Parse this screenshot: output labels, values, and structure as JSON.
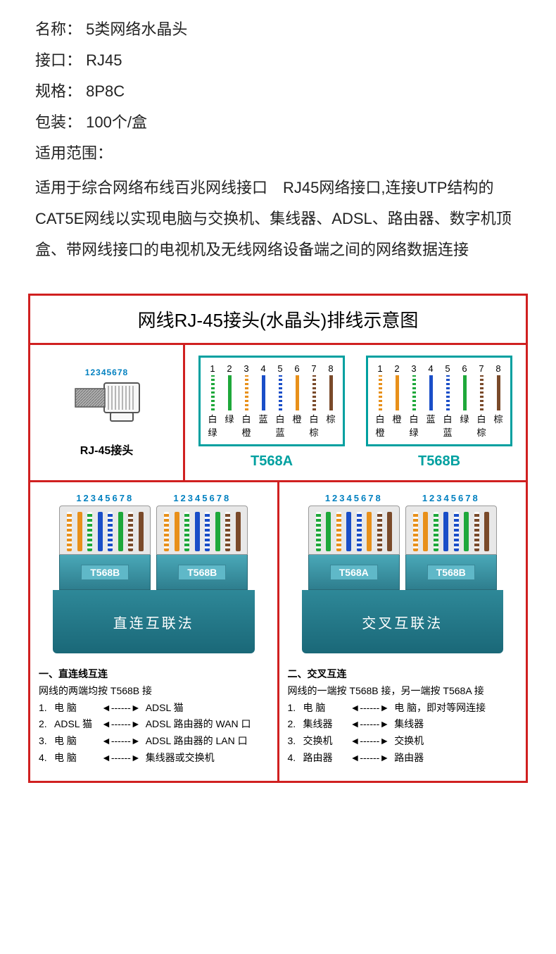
{
  "specs": {
    "name_label": "名称：",
    "name_value": "5类网络水晶头",
    "interface_label": "接口：",
    "interface_value": "RJ45",
    "spec_label": "规格：",
    "spec_value": "8P8C",
    "package_label": "包装：",
    "package_value": "100个/盒",
    "scope_label": "适用范围：",
    "scope_text": "适用于综合网络布线百兆网线接口　RJ45网络接口,连接UTP结构的CAT5E网线以实现电脑与交换机、集线器、ADSL、路由器、数字机顶盒、带网线接口的电视机及无线网络设备端之间的网络数据连接"
  },
  "diagram": {
    "title": "网线RJ-45接头(水晶头)排线示意图",
    "border_color": "#d02020",
    "bg_color": "#ffffff"
  },
  "rj45": {
    "pin_numbers": "12345678",
    "label": "RJ-45接头",
    "pin_number_color": "#0080c0"
  },
  "standards": {
    "t568a": {
      "name": "T568A",
      "name_color": "#009696",
      "wires": [
        {
          "num": "1",
          "color": "#1ea83a",
          "striped": true,
          "top": "白",
          "bot": "绿"
        },
        {
          "num": "2",
          "color": "#1ea83a",
          "striped": false,
          "top": "绿",
          "bot": ""
        },
        {
          "num": "3",
          "color": "#e8901a",
          "striped": true,
          "top": "白",
          "bot": "橙"
        },
        {
          "num": "4",
          "color": "#1a4ec8",
          "striped": false,
          "top": "蓝",
          "bot": ""
        },
        {
          "num": "5",
          "color": "#1a4ec8",
          "striped": true,
          "top": "白",
          "bot": "蓝"
        },
        {
          "num": "6",
          "color": "#e8901a",
          "striped": false,
          "top": "橙",
          "bot": ""
        },
        {
          "num": "7",
          "color": "#7a4a2a",
          "striped": true,
          "top": "白",
          "bot": "棕"
        },
        {
          "num": "8",
          "color": "#7a4a2a",
          "striped": false,
          "top": "棕",
          "bot": ""
        }
      ]
    },
    "t568b": {
      "name": "T568B",
      "name_color": "#009696",
      "wires": [
        {
          "num": "1",
          "color": "#e8901a",
          "striped": true,
          "top": "白",
          "bot": "橙"
        },
        {
          "num": "2",
          "color": "#e8901a",
          "striped": false,
          "top": "橙",
          "bot": ""
        },
        {
          "num": "3",
          "color": "#1ea83a",
          "striped": true,
          "top": "白",
          "bot": "绿"
        },
        {
          "num": "4",
          "color": "#1a4ec8",
          "striped": false,
          "top": "蓝",
          "bot": ""
        },
        {
          "num": "5",
          "color": "#1a4ec8",
          "striped": true,
          "top": "白",
          "bot": "蓝"
        },
        {
          "num": "6",
          "color": "#1ea83a",
          "striped": false,
          "top": "绿",
          "bot": ""
        },
        {
          "num": "7",
          "color": "#7a4a2a",
          "striped": true,
          "top": "白",
          "bot": "棕"
        },
        {
          "num": "8",
          "color": "#7a4a2a",
          "striped": false,
          "top": "棕",
          "bot": ""
        }
      ]
    }
  },
  "methods": {
    "straight": {
      "label": "直连互联法",
      "left_tag": "T568B",
      "right_tag": "T568B",
      "left_std": "t568b",
      "right_std": "t568b",
      "heading": "一、直连线互连",
      "sub": "网线的两端均按 T568B 接",
      "list": [
        {
          "n": "1.",
          "from": "电  脑",
          "to": "ADSL 猫"
        },
        {
          "n": "2.",
          "from": "ADSL 猫",
          "to": "ADSL 路由器的 WAN 口"
        },
        {
          "n": "3.",
          "from": "电  脑",
          "to": "ADSL 路由器的 LAN 口"
        },
        {
          "n": "4.",
          "from": "电  脑",
          "to": "集线器或交换机"
        }
      ]
    },
    "cross": {
      "label": "交叉互联法",
      "left_tag": "T568A",
      "right_tag": "T568B",
      "left_std": "t568a",
      "right_std": "t568b",
      "heading": "二、交叉互连",
      "sub": "网线的一端按 T568B 接，另一端按 T568A 接",
      "list": [
        {
          "n": "1.",
          "from": "电  脑",
          "to": "电  脑，即对等网连接"
        },
        {
          "n": "2.",
          "from": "集线器",
          "to": "集线器"
        },
        {
          "n": "3.",
          "from": "交换机",
          "to": "交换机"
        },
        {
          "n": "4.",
          "from": "路由器",
          "to": "路由器"
        }
      ]
    }
  },
  "connector_colors": {
    "body_bg": "#e8e8e8",
    "base_gradient_from": "#4aa8b8",
    "base_gradient_to": "#2e7e8e",
    "tag_bg": "#5fb8c8",
    "cable_gradient_from": "#2e8898",
    "cable_gradient_to": "#1a6878"
  }
}
